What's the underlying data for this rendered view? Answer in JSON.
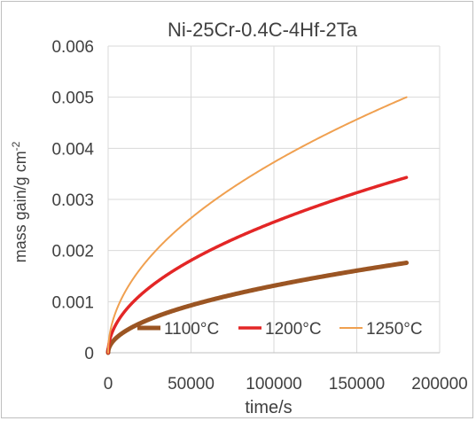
{
  "chart_data": {
    "type": "line",
    "title": "Ni-25Cr-0.4C-4Hf-2Ta",
    "xlabel": "time/s",
    "ylabel_main": "mass gain/g cm",
    "ylabel_sup": "-2",
    "xlim": [
      0,
      200000
    ],
    "ylim": [
      0,
      0.006
    ],
    "x_ticks": [
      0,
      50000,
      100000,
      150000,
      200000
    ],
    "x_tick_labels": [
      "0",
      "50000",
      "100000",
      "150000",
      "200000"
    ],
    "y_ticks": [
      0,
      0.001,
      0.002,
      0.003,
      0.004,
      0.005,
      0.006
    ],
    "y_tick_labels": [
      "0",
      "0.001",
      "0.002",
      "0.003",
      "0.004",
      "0.005",
      "0.006"
    ],
    "grid": true,
    "legend_position": "inside-bottom",
    "curve_model": "parabolic: mass_gain = k * sqrt(time)",
    "x_end": 180000,
    "series": [
      {
        "name": "1100°C",
        "color": "#9b5523",
        "end_value": 0.00176
      },
      {
        "name": "1200°C",
        "color": "#e32626",
        "end_value": 0.00343
      },
      {
        "name": "1250°C",
        "color": "#f0a050",
        "end_value": 0.005
      }
    ]
  }
}
